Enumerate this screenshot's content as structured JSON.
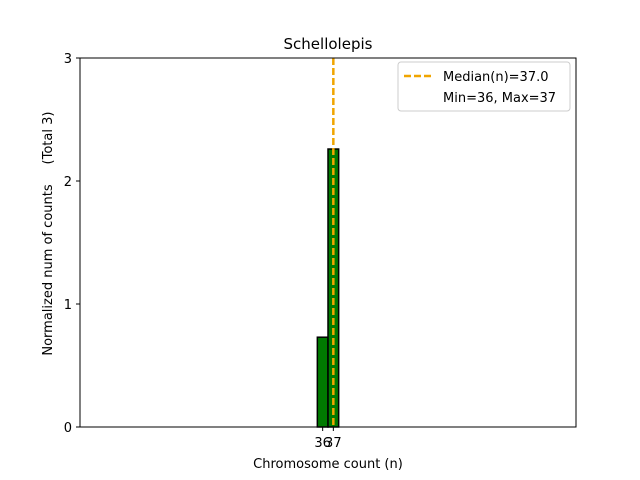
{
  "chart_data": {
    "type": "bar",
    "title": "Schellolepis",
    "xlabel": "Chromosome count (n)",
    "ylabel": "Normalized num of counts",
    "ylabel_total": "(Total 3)",
    "ylim": [
      0,
      3
    ],
    "yticks": [
      "0",
      "1",
      "2",
      "3"
    ],
    "xticks": [
      "36",
      "37"
    ],
    "bars": [
      {
        "x": 36,
        "value": 0.73
      },
      {
        "x": 37,
        "value": 2.26
      }
    ],
    "median_line": {
      "x": 37.0
    },
    "legend": {
      "placement": "top-right",
      "entries": [
        "Median(n)=37.0",
        "Min=36, Max=37"
      ]
    },
    "colors": {
      "bar_fill": "#007a00",
      "bar_edge": "#000000",
      "median": "#f0a500"
    }
  }
}
